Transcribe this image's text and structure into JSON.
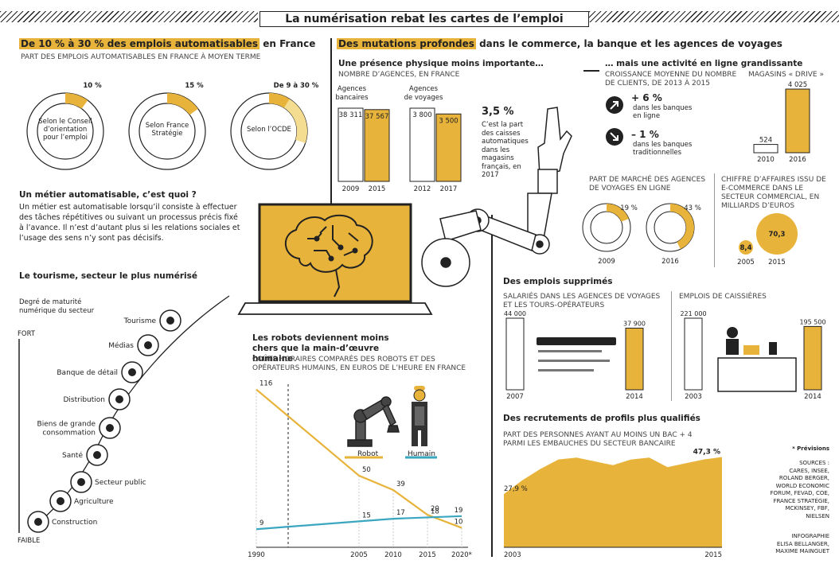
{
  "title": "La numérisation rebat les cartes de l’emploi",
  "colors": {
    "accent": "#e8b33a",
    "accent_light": "#f4dc90",
    "blue": "#3aa6c0",
    "dark": "#222222"
  },
  "sec1": {
    "title_hl": "De 10 % à 30 % des emplois automatisables",
    "title_rest": " en France",
    "caption": "PART DES EMPLOIS AUTOMATISABLES EN FRANCE À MOYEN TERME"
  },
  "sec2": {
    "title_hl": "Des mutations profondes",
    "title_rest": " dans le commerce, la banque et les agences de voyages",
    "agences": {
      "title": "Une présence physique moins importante…",
      "caption": "NOMBRE D’AGENCES, EN FRANCE"
    },
    "stat": {
      "value": "3,5 %",
      "text": "C’est la part des caisses automatiques dans les magasins français, en 2017"
    },
    "online": {
      "title": "… mais une activité en ligne grandissante",
      "caption": "CROISSANCE MOYENNE DU NOMBRE DE CLIENTS, DE 2013 À 2015",
      "up_value": "+ 6 %",
      "up_label": "dans les banques en ligne",
      "down_value": "– 1 %",
      "down_label": "dans les banques traditionnelles",
      "drive_caption": "MAGASINS « DRIVE »"
    },
    "parts_caption": "PART DE MARCHÉ DES AGENCES DE VOYAGES EN LIGNE",
    "ca_caption": "CHIFFRE D’AFFAIRES ISSU DE E-COMMERCE DANS LE SECTEUR COMMERCIAL, EN MILLIARDS D’EUROS"
  },
  "metier": {
    "title": "Un métier automatisable, c’est quoi ?",
    "text": "Un métier est automatisable lorsqu’il consiste à effectuer des tâches répétitives ou suivant un processus précis fixé à l’avance. Il n’est d’autant plus si les relations sociales et l’usage des sens n’y sont pas décisifs."
  },
  "tourisme": {
    "title": "Le tourisme, secteur le plus numérisé",
    "axis_label": "Degré de maturité numérique du secteur",
    "axis_top": "FORT",
    "axis_bottom": "FAIBLE"
  },
  "robots": {
    "title": "Les robots deviennent moins chers que la main-d’œuvre humaine",
    "caption": "COÛTS HORAIRES COMPARÉS DES ROBOTS ET DES OPÉRATEURS HUMAINS, EN EUROS DE L’HEURE EN FRANCE",
    "legend_robot": "Robot",
    "legend_human": "Humain"
  },
  "supprimes": {
    "title": "Des emplois supprimés",
    "caption_a": "SALARIÉS DANS LES AGENCES DE VOYAGES ET LES TOURS-OPÉRATEURS",
    "caption_b": "EMPLOIS DE CAISSIÈRES"
  },
  "recrut": {
    "title": "Des recrutements de profils plus qualifiés",
    "caption": "PART DES PERSONNES AYANT AU MOINS UN BAC + 4 PARMI LES EMBAUCHES DU SECTEUR BANCAIRE"
  },
  "notes": {
    "prevision": "* Prévisions",
    "sources": [
      "SOURCES :",
      "CARES, INSEE,",
      "ROLAND BERGER,",
      "WORLD ECONOMIC",
      "FORUM, FEVAD, COE,",
      "FRANCE STRATÉGIE,",
      "MCKINSEY, FBF,",
      "NIELSEN"
    ],
    "credits": [
      "INFOGRAPHIE",
      "ELISA BELLANGER,",
      "MAXIME MAINGUET"
    ]
  },
  "chart_data": [
    {
      "type": "pie",
      "id": "automatisables",
      "slices": [
        {
          "label": "Selon le Conseil d’orientation pour l’emploi",
          "value": "10 %",
          "min": 10,
          "max": 10
        },
        {
          "label": "Selon France Stratégie",
          "value": "15 %",
          "min": 15,
          "max": 15
        },
        {
          "label": "Selon l’OCDE",
          "value": "De 9 à 30 %",
          "min": 9,
          "max": 30
        }
      ]
    },
    {
      "type": "bar",
      "id": "agences_bancaires",
      "title": "Agences bancaires",
      "categories": [
        "2009",
        "2015"
      ],
      "values": [
        38311,
        37567
      ],
      "labels": [
        "38 311",
        "37 567"
      ]
    },
    {
      "type": "bar",
      "id": "agences_voyages",
      "title": "Agences de voyages",
      "categories": [
        "2012",
        "2017"
      ],
      "values": [
        3800,
        3500
      ],
      "labels": [
        "3 800",
        "3 500"
      ]
    },
    {
      "type": "bar",
      "id": "drive",
      "title": "MAGASINS « DRIVE »",
      "categories": [
        "2010",
        "2016"
      ],
      "values": [
        524,
        4025
      ],
      "labels": [
        "524",
        "4 025"
      ]
    },
    {
      "type": "pie",
      "id": "parts_marche",
      "categories": [
        "2009",
        "2016"
      ],
      "values": [
        19,
        43
      ],
      "labels": [
        "19 %",
        "43 %"
      ]
    },
    {
      "type": "bar",
      "id": "chiffre_affaires",
      "categories": [
        "2005",
        "2015"
      ],
      "values": [
        8.4,
        70.3
      ],
      "labels": [
        "8,4",
        "70,3"
      ]
    },
    {
      "type": "scatter",
      "id": "tourisme",
      "categories": [
        "Tourisme",
        "Médias",
        "Banque de détail",
        "Distribution",
        "Biens de grande consommation",
        "Santé",
        "Secteur public",
        "Agriculture",
        "Construction"
      ]
    },
    {
      "type": "line",
      "id": "cout_horaire",
      "x": [
        "1990",
        "2005",
        "2010",
        "2015",
        "2020*"
      ],
      "series": [
        {
          "name": "Robot",
          "x": [
            1990,
            2005,
            2010,
            2015,
            2020
          ],
          "values": [
            116,
            50,
            39,
            20,
            10
          ]
        },
        {
          "name": "Humain",
          "x": [
            1990,
            2005,
            2010,
            2015,
            2020
          ],
          "values": [
            9,
            15,
            17,
            18,
            19
          ]
        }
      ],
      "ylim": [
        0,
        120
      ]
    },
    {
      "type": "bar",
      "id": "salaries_voyages",
      "categories": [
        "2007",
        "2014"
      ],
      "values": [
        44000,
        37900
      ],
      "labels": [
        "44 000",
        "37 900"
      ]
    },
    {
      "type": "bar",
      "id": "caissieres",
      "categories": [
        "2003",
        "2014"
      ],
      "values": [
        221000,
        195500
      ],
      "labels": [
        "221 000",
        "195 500"
      ]
    },
    {
      "type": "area",
      "id": "bac4",
      "x": [
        2003,
        2004,
        2005,
        2006,
        2007,
        2008,
        2009,
        2010,
        2011,
        2012,
        2013,
        2014,
        2015
      ],
      "values": [
        27.9,
        35,
        41,
        46,
        47,
        45,
        43,
        46,
        47,
        42,
        44,
        46,
        47.3
      ],
      "labels": {
        "first": "27,9 %",
        "last": "47,3 %"
      },
      "xticks": [
        "2003",
        "2015"
      ],
      "ylim": [
        0,
        50
      ]
    }
  ]
}
